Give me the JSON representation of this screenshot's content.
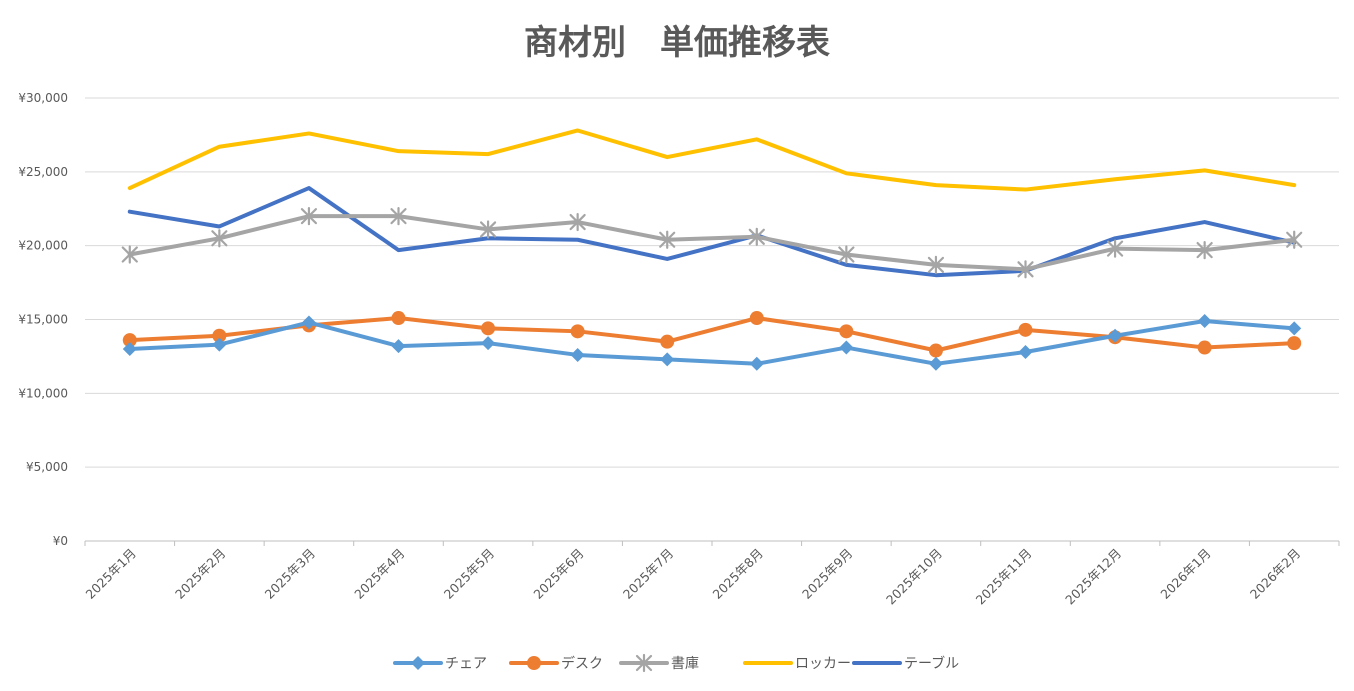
{
  "chart_data": {
    "type": "line",
    "title": "商材別　単価推移表",
    "xlabel": "",
    "ylabel": "",
    "ylim": [
      0,
      30000
    ],
    "yticks": [
      {
        "value": 0,
        "label": "¥0"
      },
      {
        "value": 5000,
        "label": "¥5,000"
      },
      {
        "value": 10000,
        "label": "¥10,000"
      },
      {
        "value": 15000,
        "label": "¥15,000"
      },
      {
        "value": 20000,
        "label": "¥20,000"
      },
      {
        "value": 25000,
        "label": "¥25,000"
      },
      {
        "value": 30000,
        "label": "¥30,000"
      }
    ],
    "grid": true,
    "legend_position": "bottom",
    "categories": [
      "2025年1月",
      "2025年2月",
      "2025年3月",
      "2025年4月",
      "2025年5月",
      "2025年6月",
      "2025年7月",
      "2025年8月",
      "2025年9月",
      "2025年10月",
      "2025年11月",
      "2025年12月",
      "2026年1月",
      "2026年2月"
    ],
    "series": [
      {
        "name": "チェア",
        "color": "#5B9BD5",
        "marker": "diamond",
        "values": [
          13000,
          13300,
          14800,
          13200,
          13400,
          12600,
          12300,
          12000,
          13100,
          12000,
          12800,
          13900,
          14900,
          14400
        ]
      },
      {
        "name": "デスク",
        "color": "#ED7D31",
        "marker": "circle",
        "values": [
          13600,
          13900,
          14600,
          15100,
          14400,
          14200,
          13500,
          15100,
          14200,
          12900,
          14300,
          13800,
          13100,
          13400
        ]
      },
      {
        "name": "書庫",
        "color": "#A5A5A5",
        "marker": "asterisk",
        "values": [
          19400,
          20500,
          22000,
          22000,
          21100,
          21600,
          20400,
          20600,
          19400,
          18700,
          18400,
          19800,
          19700,
          20400
        ]
      },
      {
        "name": "ロッカー",
        "color": "#FFC000",
        "marker": "none",
        "values": [
          23900,
          26700,
          27600,
          26400,
          26200,
          27800,
          26000,
          27200,
          24900,
          24100,
          23800,
          24500,
          25100,
          24100
        ]
      },
      {
        "name": "テーブル",
        "color": "#4472C4",
        "marker": "none",
        "values": [
          22300,
          21300,
          23900,
          19700,
          20500,
          20400,
          19100,
          20700,
          18700,
          18000,
          18300,
          20500,
          21600,
          20200
        ]
      }
    ]
  }
}
